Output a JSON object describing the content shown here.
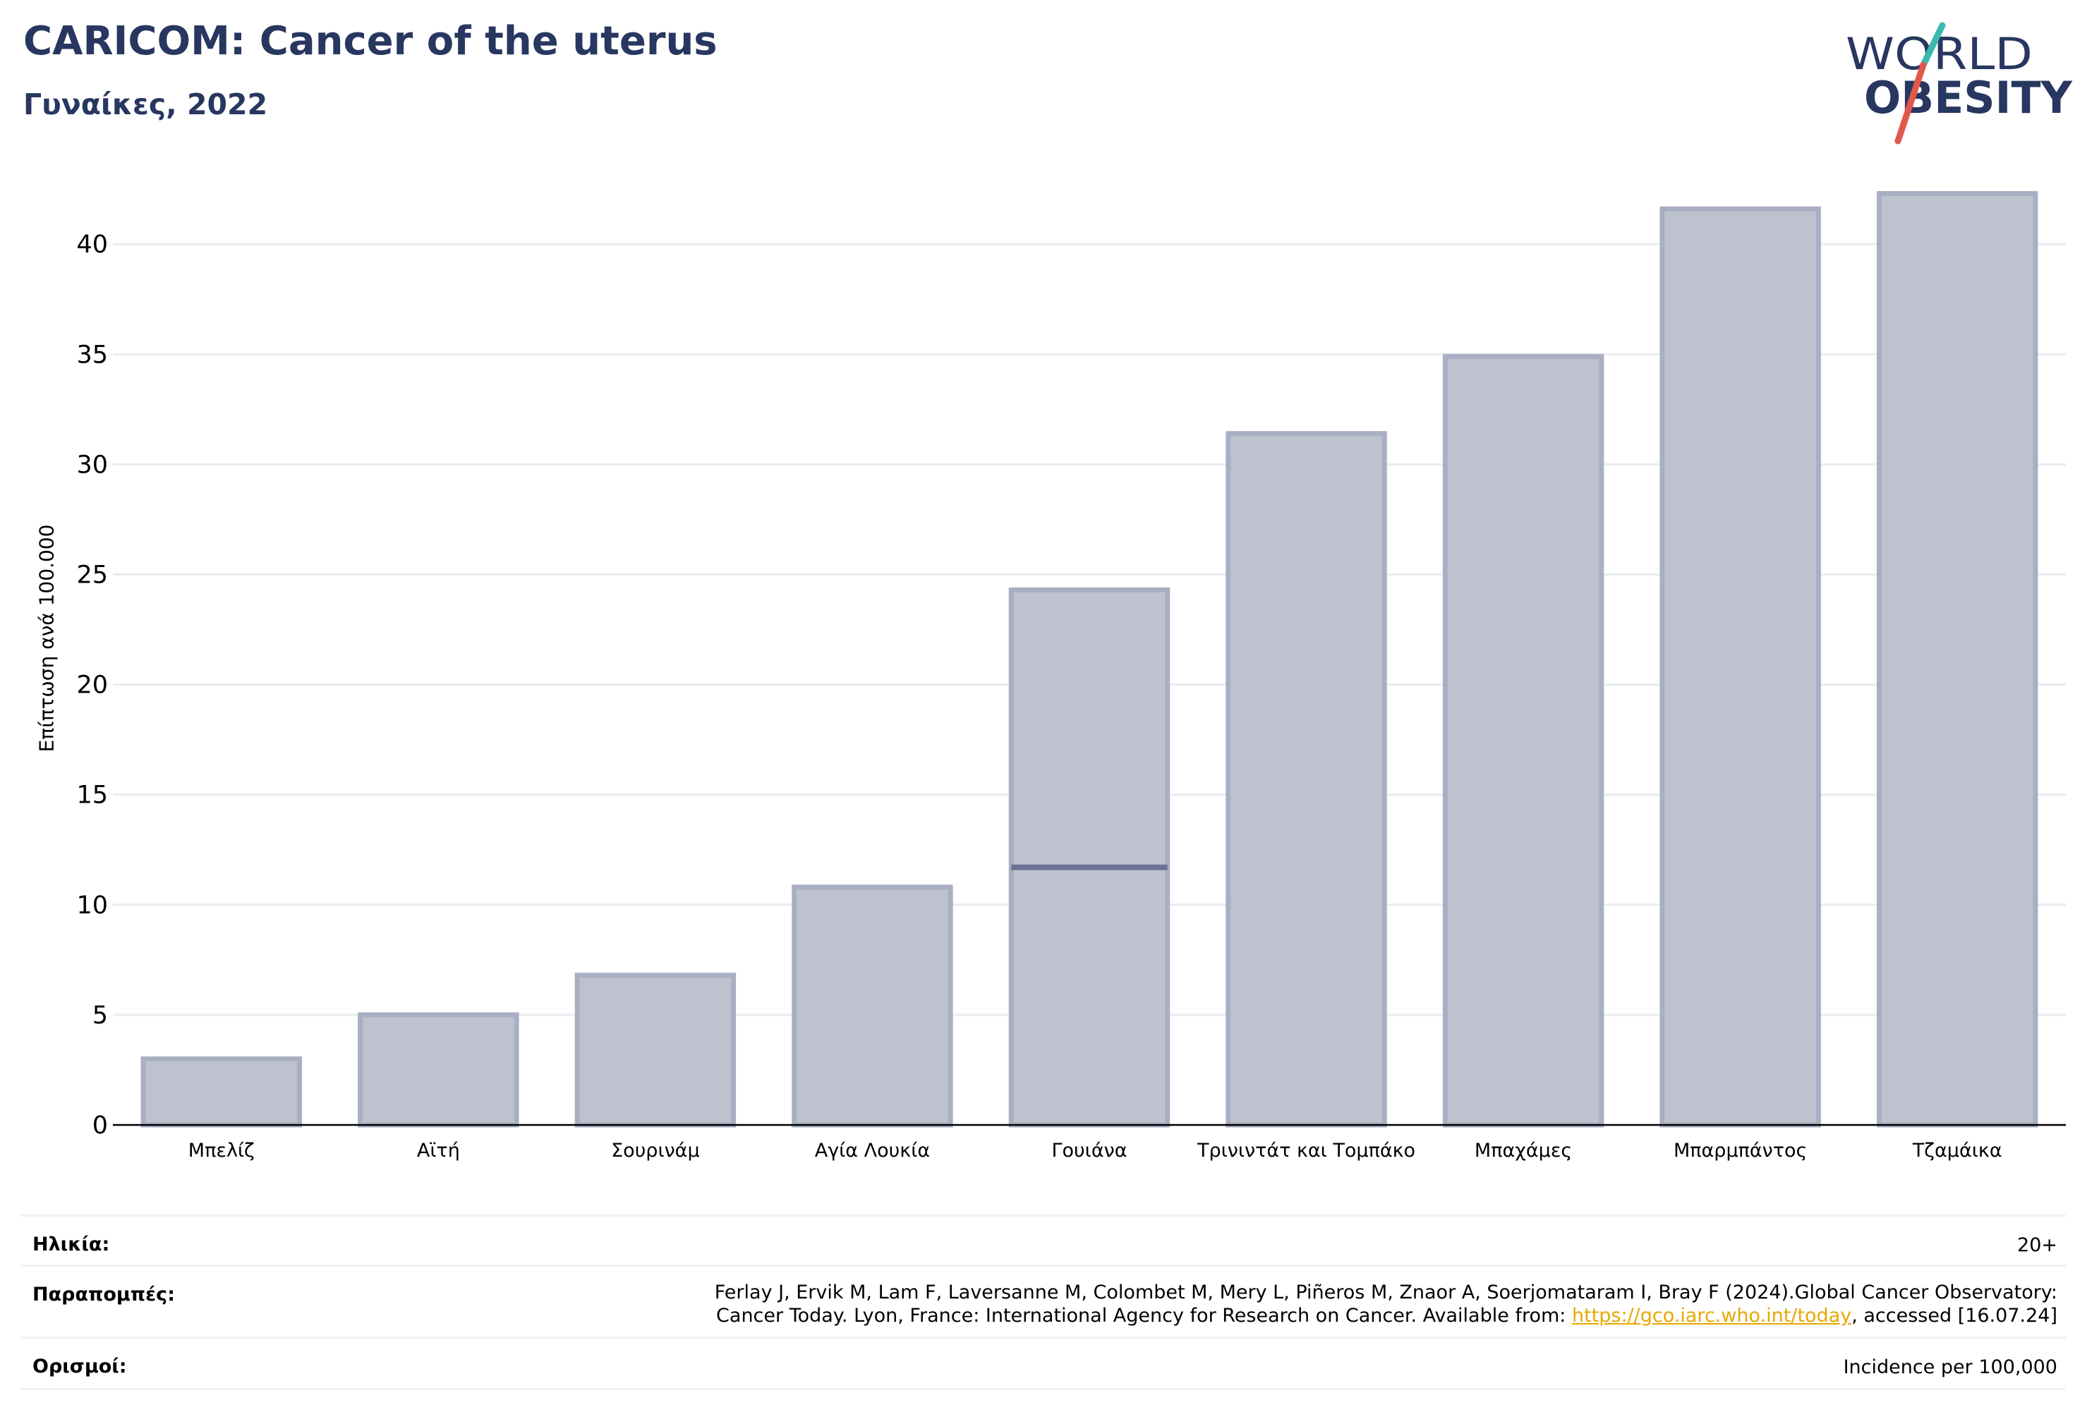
{
  "header": {
    "title": "CARICOM: Cancer of the uterus",
    "subtitle": "Γυναίκες, 2022"
  },
  "logo": {
    "line1": "WORLD",
    "line2": "OBESITY",
    "accent_teal": "#3bb8b0",
    "accent_red": "#e2574c",
    "text_color": "#283760"
  },
  "chart_data": {
    "type": "bar",
    "title": "CARICOM: Cancer of the uterus",
    "ylabel": "Επίπτωση ανά 100.000",
    "xlabel": "",
    "ylim": [
      0,
      43
    ],
    "yticks": [
      0,
      5,
      10,
      15,
      20,
      25,
      30,
      35,
      40
    ],
    "grid": true,
    "categories": [
      "Μπελίζ",
      "Αϊτή",
      "Σουρινάμ",
      "Αγία Λουκία",
      "Γουιάνα",
      "Τρινιντάτ και Τομπάκο",
      "Μπαχάμες",
      "Μπαρμπάντος",
      "Τζαμάικα"
    ],
    "values": [
      3.0,
      5.0,
      6.8,
      10.8,
      24.3,
      31.4,
      34.9,
      41.6,
      42.3
    ],
    "reference_line": {
      "category": "Γουιάνα",
      "value": 11.7
    },
    "bar_color": "#bec2ce",
    "bar_edge_color": "#a9afc3",
    "reference_color": "#6a7394"
  },
  "info": {
    "age_label": "Ηλικία:",
    "age_value": "20+",
    "refs_label": "Παραπομπές:",
    "refs_line1": "Ferlay J, Ervik M, Lam F, Laversanne M, Colombet M, Mery L, Piñeros M, Znaor A, Soerjomataram I, Bray F (2024).Global Cancer Observatory:",
    "refs_line2_pre": "Cancer Today. Lyon, France: International Agency for Research on Cancer. Available from: ",
    "refs_link": "https://gco.iarc.who.int/today",
    "refs_line2_post": ", accessed [16.07.24]",
    "defs_label": "Ορισμοί:",
    "defs_value": "Incidence per 100,000"
  }
}
